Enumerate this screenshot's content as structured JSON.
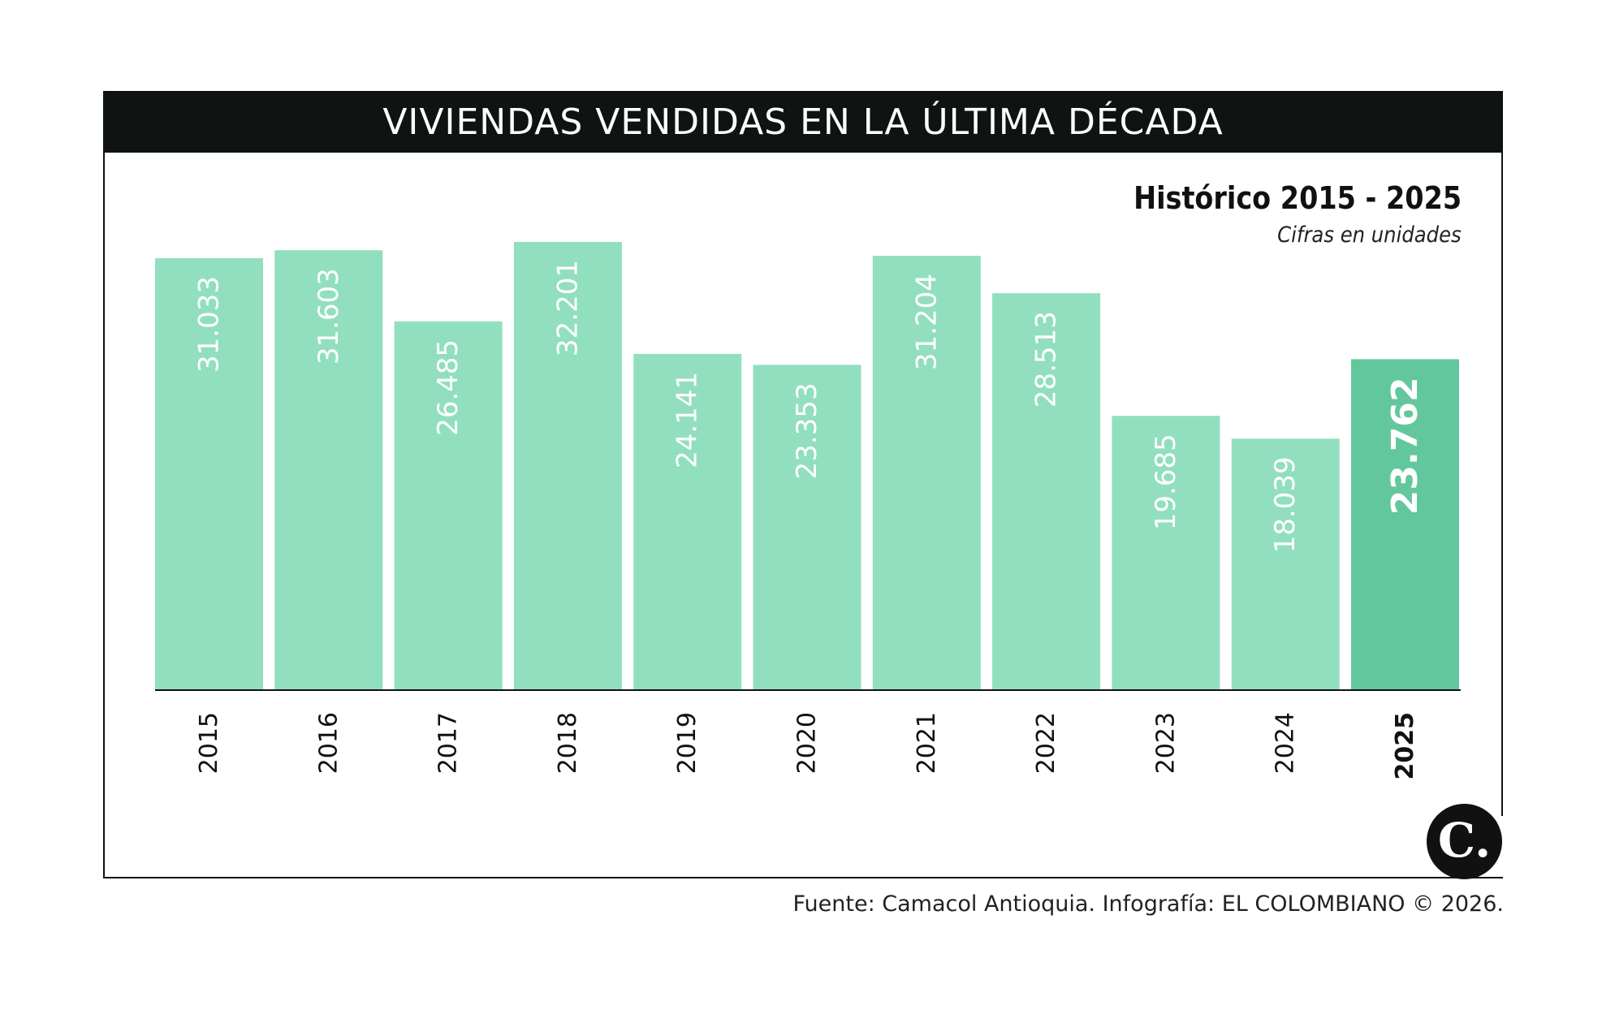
{
  "header": {
    "title": "VIVIENDAS VENDIDAS EN LA ÚLTIMA DÉCADA"
  },
  "chart_info": {
    "subtitle": "Histórico 2015 - 2025",
    "note": "Cifras en unidades"
  },
  "footer": {
    "source": "Fuente: Camacol Antioquia. Infografía: EL COLOMBIANO © 2026."
  },
  "logo": {
    "letter": "C."
  },
  "colors": {
    "bar": "#92dfc0",
    "bar_highlight": "#63c79e",
    "header_bg": "#0f1413",
    "label": "#ffffff"
  },
  "chart_data": {
    "type": "bar",
    "categories": [
      "2015",
      "2016",
      "2017",
      "2018",
      "2019",
      "2020",
      "2021",
      "2022",
      "2023",
      "2024",
      "2025"
    ],
    "values": [
      31033,
      31603,
      26485,
      32201,
      24141,
      23353,
      31204,
      28513,
      19685,
      18039,
      23762
    ],
    "value_labels": [
      "31.033",
      "31.603",
      "26.485",
      "32.201",
      "24.141",
      "23.353",
      "31.204",
      "28.513",
      "19.685",
      "18.039",
      "23.762"
    ],
    "highlight": "2025",
    "title": "VIVIENDAS VENDIDAS EN LA ÚLTIMA DÉCADA",
    "ylim": [
      0,
      32201
    ],
    "grid": false,
    "legend": "none"
  }
}
